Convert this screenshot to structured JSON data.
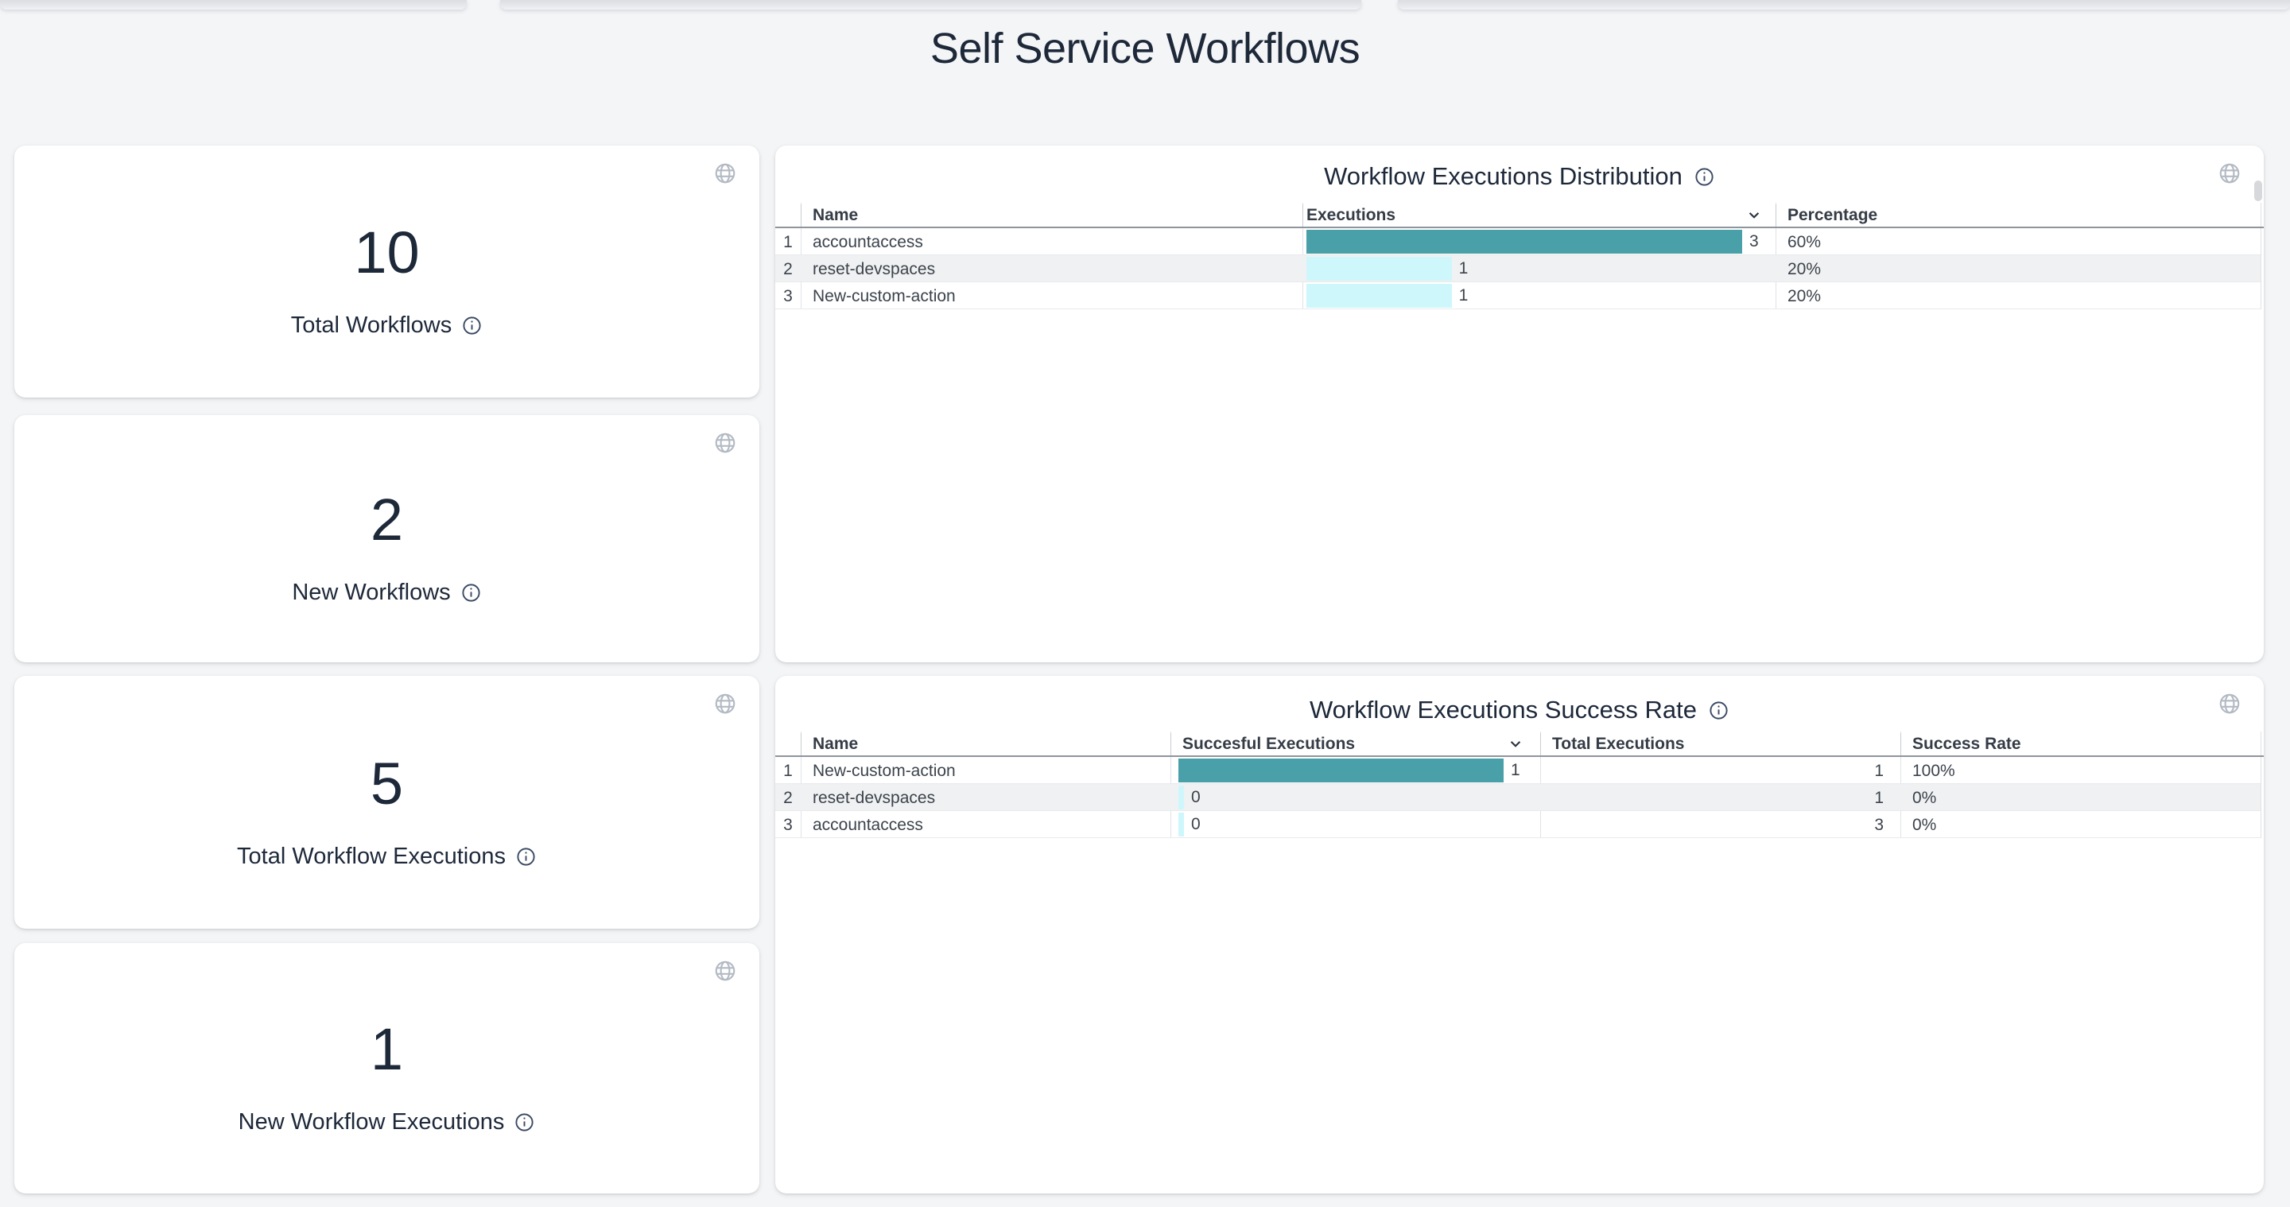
{
  "page": {
    "title": "Self Service Workflows"
  },
  "stat_cards": [
    {
      "value": "10",
      "label": "Total Workflows"
    },
    {
      "value": "2",
      "label": "New Workflows"
    },
    {
      "value": "5",
      "label": "Total Workflow Executions"
    },
    {
      "value": "1",
      "label": "New Workflow Executions"
    }
  ],
  "distribution_table": {
    "title": "Workflow Executions Distribution",
    "columns": {
      "name": "Name",
      "executions": "Executions",
      "percentage": "Percentage"
    },
    "sorted_column": "Executions",
    "rows": [
      {
        "index": "1",
        "name": "accountaccess",
        "executions": 3,
        "percentage": "60%"
      },
      {
        "index": "2",
        "name": "reset-devspaces",
        "executions": 1,
        "percentage": "20%"
      },
      {
        "index": "3",
        "name": "New-custom-action",
        "executions": 1,
        "percentage": "20%"
      }
    ]
  },
  "success_table": {
    "title": "Workflow Executions Success Rate",
    "columns": {
      "name": "Name",
      "successful": "Succesful Executions",
      "total": "Total Executions",
      "rate": "Success Rate"
    },
    "sorted_column": "Succesful Executions",
    "rows": [
      {
        "index": "1",
        "name": "New-custom-action",
        "successful": 1,
        "total": "1",
        "rate": "100%"
      },
      {
        "index": "2",
        "name": "reset-devspaces",
        "successful": 0,
        "total": "1",
        "rate": "0%"
      },
      {
        "index": "3",
        "name": "accountaccess",
        "successful": 0,
        "total": "3",
        "rate": "0%"
      }
    ]
  },
  "chart_data": [
    {
      "type": "bar",
      "title": "Workflow Executions Distribution",
      "categories": [
        "accountaccess",
        "reset-devspaces",
        "New-custom-action"
      ],
      "values": [
        3,
        1,
        1
      ],
      "percentages": [
        "60%",
        "20%",
        "20%"
      ],
      "xlabel": "Executions",
      "ylabel": "Name",
      "orientation": "horizontal"
    },
    {
      "type": "bar",
      "title": "Workflow Executions Success Rate",
      "categories": [
        "New-custom-action",
        "reset-devspaces",
        "accountaccess"
      ],
      "series": [
        {
          "name": "Succesful Executions",
          "values": [
            1,
            0,
            0
          ]
        },
        {
          "name": "Total Executions",
          "values": [
            1,
            1,
            3
          ]
        },
        {
          "name": "Success Rate",
          "values": [
            "100%",
            "0%",
            "0%"
          ]
        }
      ],
      "orientation": "horizontal"
    }
  ],
  "icons": {
    "globe": "globe-icon",
    "info": "info-icon",
    "sort": "chevron-down-icon"
  },
  "colors": {
    "page_background": "#f4f5f7",
    "card_background": "#ffffff",
    "heading_text": "#1d2839",
    "cell_text": "#3c434c",
    "bar_teal": "#4aa0a8",
    "bar_light_cyan": "#cef7fc",
    "striped_row": "#f0f1f2",
    "icon_gray": "#b3bac4"
  }
}
